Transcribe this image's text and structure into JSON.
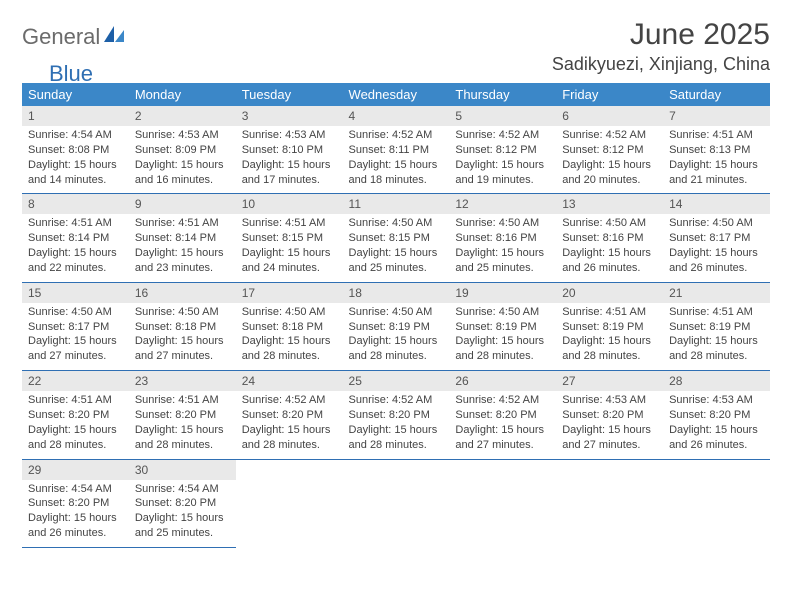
{
  "brand": {
    "part1": "General",
    "part2": "Blue"
  },
  "title": "June 2025",
  "location": "Sadikyuezi, Xinjiang, China",
  "colors": {
    "header_bg": "#3b87c8",
    "header_fg": "#ffffff",
    "daynum_bg": "#e9e9e9",
    "rule": "#2f6fb3",
    "brand_gray": "#6b6b6b",
    "brand_blue": "#2f6fb3"
  },
  "day_headers": [
    "Sunday",
    "Monday",
    "Tuesday",
    "Wednesday",
    "Thursday",
    "Friday",
    "Saturday"
  ],
  "days": {
    "1": {
      "sunrise": "4:54 AM",
      "sunset": "8:08 PM",
      "daylight": "15 hours and 14 minutes."
    },
    "2": {
      "sunrise": "4:53 AM",
      "sunset": "8:09 PM",
      "daylight": "15 hours and 16 minutes."
    },
    "3": {
      "sunrise": "4:53 AM",
      "sunset": "8:10 PM",
      "daylight": "15 hours and 17 minutes."
    },
    "4": {
      "sunrise": "4:52 AM",
      "sunset": "8:11 PM",
      "daylight": "15 hours and 18 minutes."
    },
    "5": {
      "sunrise": "4:52 AM",
      "sunset": "8:12 PM",
      "daylight": "15 hours and 19 minutes."
    },
    "6": {
      "sunrise": "4:52 AM",
      "sunset": "8:12 PM",
      "daylight": "15 hours and 20 minutes."
    },
    "7": {
      "sunrise": "4:51 AM",
      "sunset": "8:13 PM",
      "daylight": "15 hours and 21 minutes."
    },
    "8": {
      "sunrise": "4:51 AM",
      "sunset": "8:14 PM",
      "daylight": "15 hours and 22 minutes."
    },
    "9": {
      "sunrise": "4:51 AM",
      "sunset": "8:14 PM",
      "daylight": "15 hours and 23 minutes."
    },
    "10": {
      "sunrise": "4:51 AM",
      "sunset": "8:15 PM",
      "daylight": "15 hours and 24 minutes."
    },
    "11": {
      "sunrise": "4:50 AM",
      "sunset": "8:15 PM",
      "daylight": "15 hours and 25 minutes."
    },
    "12": {
      "sunrise": "4:50 AM",
      "sunset": "8:16 PM",
      "daylight": "15 hours and 25 minutes."
    },
    "13": {
      "sunrise": "4:50 AM",
      "sunset": "8:16 PM",
      "daylight": "15 hours and 26 minutes."
    },
    "14": {
      "sunrise": "4:50 AM",
      "sunset": "8:17 PM",
      "daylight": "15 hours and 26 minutes."
    },
    "15": {
      "sunrise": "4:50 AM",
      "sunset": "8:17 PM",
      "daylight": "15 hours and 27 minutes."
    },
    "16": {
      "sunrise": "4:50 AM",
      "sunset": "8:18 PM",
      "daylight": "15 hours and 27 minutes."
    },
    "17": {
      "sunrise": "4:50 AM",
      "sunset": "8:18 PM",
      "daylight": "15 hours and 28 minutes."
    },
    "18": {
      "sunrise": "4:50 AM",
      "sunset": "8:19 PM",
      "daylight": "15 hours and 28 minutes."
    },
    "19": {
      "sunrise": "4:50 AM",
      "sunset": "8:19 PM",
      "daylight": "15 hours and 28 minutes."
    },
    "20": {
      "sunrise": "4:51 AM",
      "sunset": "8:19 PM",
      "daylight": "15 hours and 28 minutes."
    },
    "21": {
      "sunrise": "4:51 AM",
      "sunset": "8:19 PM",
      "daylight": "15 hours and 28 minutes."
    },
    "22": {
      "sunrise": "4:51 AM",
      "sunset": "8:20 PM",
      "daylight": "15 hours and 28 minutes."
    },
    "23": {
      "sunrise": "4:51 AM",
      "sunset": "8:20 PM",
      "daylight": "15 hours and 28 minutes."
    },
    "24": {
      "sunrise": "4:52 AM",
      "sunset": "8:20 PM",
      "daylight": "15 hours and 28 minutes."
    },
    "25": {
      "sunrise": "4:52 AM",
      "sunset": "8:20 PM",
      "daylight": "15 hours and 28 minutes."
    },
    "26": {
      "sunrise": "4:52 AM",
      "sunset": "8:20 PM",
      "daylight": "15 hours and 27 minutes."
    },
    "27": {
      "sunrise": "4:53 AM",
      "sunset": "8:20 PM",
      "daylight": "15 hours and 27 minutes."
    },
    "28": {
      "sunrise": "4:53 AM",
      "sunset": "8:20 PM",
      "daylight": "15 hours and 26 minutes."
    },
    "29": {
      "sunrise": "4:54 AM",
      "sunset": "8:20 PM",
      "daylight": "15 hours and 26 minutes."
    },
    "30": {
      "sunrise": "4:54 AM",
      "sunset": "8:20 PM",
      "daylight": "15 hours and 25 minutes."
    }
  },
  "labels": {
    "sunrise": "Sunrise: ",
    "sunset": "Sunset: ",
    "daylight": "Daylight: "
  }
}
